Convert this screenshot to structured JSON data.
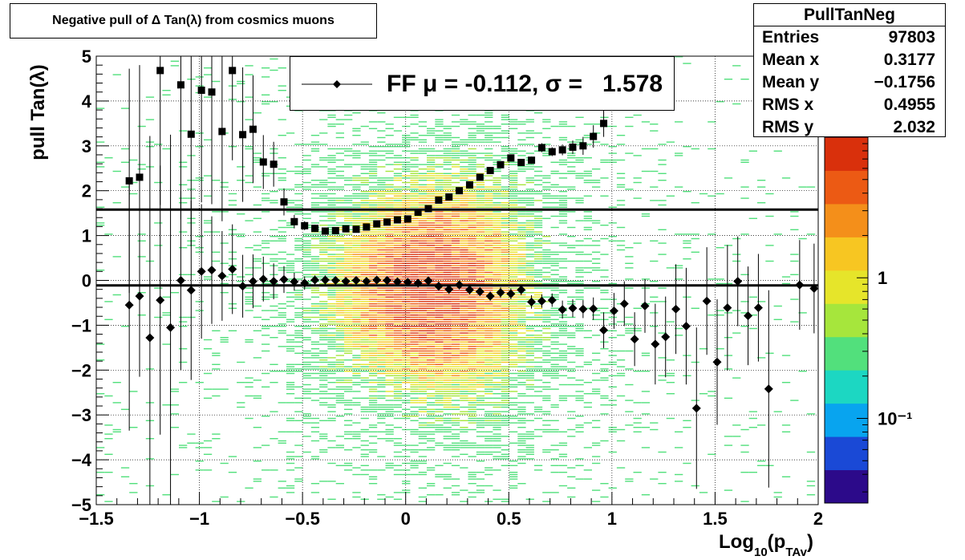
{
  "chart_data": {
    "type": "heatmap",
    "title": "Negative pull of Δ Tan(λ) from cosmics muons",
    "xlabel_main": "Log",
    "xlabel_sub": "10",
    "xlabel_paren": "(p",
    "xlabel_sub2": "TAv",
    "xlabel_close": ")",
    "ylabel": "pull Tan(λ)",
    "xlim": [
      -1.5,
      2.0
    ],
    "ylim": [
      -5,
      5
    ],
    "xticks": [
      -1.5,
      -1,
      -0.5,
      0,
      0.5,
      1,
      1.5,
      2
    ],
    "xtick_labels": [
      "−1.5",
      "−1",
      "−0.5",
      "0",
      "0.5",
      "1",
      "1.5",
      "2"
    ],
    "yticks": [
      -5,
      -4,
      -3,
      -2,
      -1,
      0,
      1,
      2,
      3,
      4,
      5
    ],
    "ytick_labels": [
      "−5",
      "−4",
      "−3",
      "−2",
      "−1",
      "0",
      "1",
      "2",
      "3",
      "4",
      "5"
    ],
    "z_scale": "log",
    "z_labels": [
      {
        "value": 1,
        "text": "1"
      },
      {
        "value": 0.1,
        "text": "10⁻¹"
      }
    ],
    "grid": true,
    "palette": [
      "#2c0a8a",
      "#1a49d6",
      "#08a4ef",
      "#1cd7c2",
      "#52e07c",
      "#a6e63c",
      "#e6e52a",
      "#f7c622",
      "#f48f1a",
      "#ec5a14",
      "#d9300c"
    ],
    "reference_lines": [
      {
        "y": 1.578,
        "label": "sigma"
      },
      {
        "y": -0.112,
        "label": "mu"
      }
    ],
    "series": [
      {
        "name": "mean",
        "marker": "diamond",
        "x": [
          -1.34,
          -1.29,
          -1.24,
          -1.19,
          -1.14,
          -1.09,
          -1.04,
          -0.99,
          -0.94,
          -0.89,
          -0.84,
          -0.79,
          -0.74,
          -0.69,
          -0.64,
          -0.59,
          -0.54,
          -0.49,
          -0.44,
          -0.39,
          -0.34,
          -0.29,
          -0.24,
          -0.19,
          -0.14,
          -0.09,
          -0.04,
          0.01,
          0.06,
          0.11,
          0.16,
          0.21,
          0.26,
          0.31,
          0.36,
          0.41,
          0.46,
          0.51,
          0.56,
          0.61,
          0.66,
          0.71,
          0.76,
          0.81,
          0.86,
          0.91,
          0.96,
          1.01,
          1.06,
          1.11,
          1.16,
          1.21,
          1.26,
          1.31,
          1.36,
          1.41,
          1.46,
          1.51,
          1.56,
          1.61,
          1.66,
          1.71,
          1.76,
          1.91,
          1.98
        ],
        "y": [
          -0.55,
          -0.35,
          -1.28,
          -0.44,
          -1.05,
          0.0,
          -0.22,
          0.2,
          0.23,
          0.1,
          0.25,
          -0.13,
          -0.02,
          0.03,
          -0.02,
          0.02,
          -0.03,
          -0.06,
          0.01,
          0.01,
          0.0,
          -0.02,
          0.0,
          -0.02,
          0.01,
          0.0,
          -0.03,
          -0.04,
          -0.06,
          -0.01,
          -0.13,
          -0.2,
          -0.1,
          -0.21,
          -0.25,
          -0.35,
          -0.27,
          -0.3,
          -0.21,
          -0.48,
          -0.46,
          -0.44,
          -0.65,
          -0.62,
          -0.64,
          -0.63,
          -1.11,
          -0.68,
          -0.52,
          -1.31,
          -0.57,
          -1.42,
          -1.26,
          -0.64,
          -1.02,
          -2.85,
          -0.46,
          -1.82,
          -0.61,
          -0.02,
          -0.79,
          -0.61,
          -2.42,
          -0.1,
          -0.18
        ],
        "yerr": [
          2.8,
          1.8,
          4.5,
          3.0,
          4.3,
          2.0,
          2.0,
          1.5,
          1.2,
          1.0,
          1.0,
          0.7,
          0.6,
          0.5,
          0.4,
          0.3,
          0.2,
          0.15,
          0.1,
          0.1,
          0.08,
          0.08,
          0.08,
          0.08,
          0.08,
          0.08,
          0.08,
          0.08,
          0.08,
          0.1,
          0.1,
          0.1,
          0.1,
          0.1,
          0.1,
          0.1,
          0.12,
          0.12,
          0.12,
          0.15,
          0.15,
          0.15,
          0.2,
          0.2,
          0.2,
          0.25,
          0.4,
          0.4,
          0.5,
          0.6,
          0.6,
          0.9,
          0.9,
          1.0,
          1.3,
          1.8,
          1.2,
          1.4,
          1.4,
          1.0,
          1.1,
          1.2,
          2.2,
          1.0,
          1.0
        ]
      },
      {
        "name": "rms",
        "marker": "square",
        "x": [
          -1.34,
          -1.29,
          -1.19,
          -1.09,
          -1.04,
          -0.99,
          -0.94,
          -0.89,
          -0.84,
          -0.79,
          -0.74,
          -0.69,
          -0.64,
          -0.59,
          -0.54,
          -0.49,
          -0.44,
          -0.39,
          -0.34,
          -0.29,
          -0.24,
          -0.19,
          -0.14,
          -0.09,
          -0.04,
          0.01,
          0.06,
          0.11,
          0.16,
          0.21,
          0.26,
          0.31,
          0.36,
          0.41,
          0.46,
          0.51,
          0.56,
          0.61,
          0.66,
          0.71,
          0.76,
          0.81,
          0.86,
          0.91,
          0.96
        ],
        "y": [
          2.22,
          2.3,
          4.68,
          4.36,
          3.26,
          4.24,
          4.2,
          3.32,
          4.68,
          3.25,
          3.37,
          2.64,
          2.59,
          1.75,
          1.31,
          1.22,
          1.16,
          1.1,
          1.11,
          1.15,
          1.14,
          1.19,
          1.26,
          1.3,
          1.35,
          1.37,
          1.52,
          1.6,
          1.79,
          1.86,
          2.0,
          2.13,
          2.3,
          2.45,
          2.58,
          2.73,
          2.63,
          2.68,
          2.96,
          2.87,
          2.91,
          2.97,
          3.0,
          3.21,
          3.5
        ],
        "yerr": [
          2.5,
          2.5,
          3.0,
          3.0,
          2.5,
          2.5,
          2.5,
          2.0,
          2.0,
          1.5,
          1.2,
          0.6,
          0.5,
          0.3,
          0.15,
          0.1,
          0.08,
          0.06,
          0.06,
          0.06,
          0.06,
          0.06,
          0.06,
          0.06,
          0.06,
          0.06,
          0.06,
          0.06,
          0.06,
          0.06,
          0.06,
          0.06,
          0.06,
          0.06,
          0.06,
          0.07,
          0.07,
          0.08,
          0.1,
          0.1,
          0.12,
          0.15,
          0.2,
          0.25,
          0.3
        ]
      }
    ]
  },
  "legend": {
    "text": "FF μ = -0.112, σ =   1.578"
  },
  "stats": {
    "name": "PullTanNeg",
    "rows": [
      {
        "label": "Entries",
        "value": "97803"
      },
      {
        "label": "Mean x",
        "value": "0.3177"
      },
      {
        "label": "Mean y",
        "value": "−0.1756"
      },
      {
        "label": "RMS x",
        "value": "0.4955"
      },
      {
        "label": "RMS y",
        "value": "2.032"
      }
    ]
  }
}
